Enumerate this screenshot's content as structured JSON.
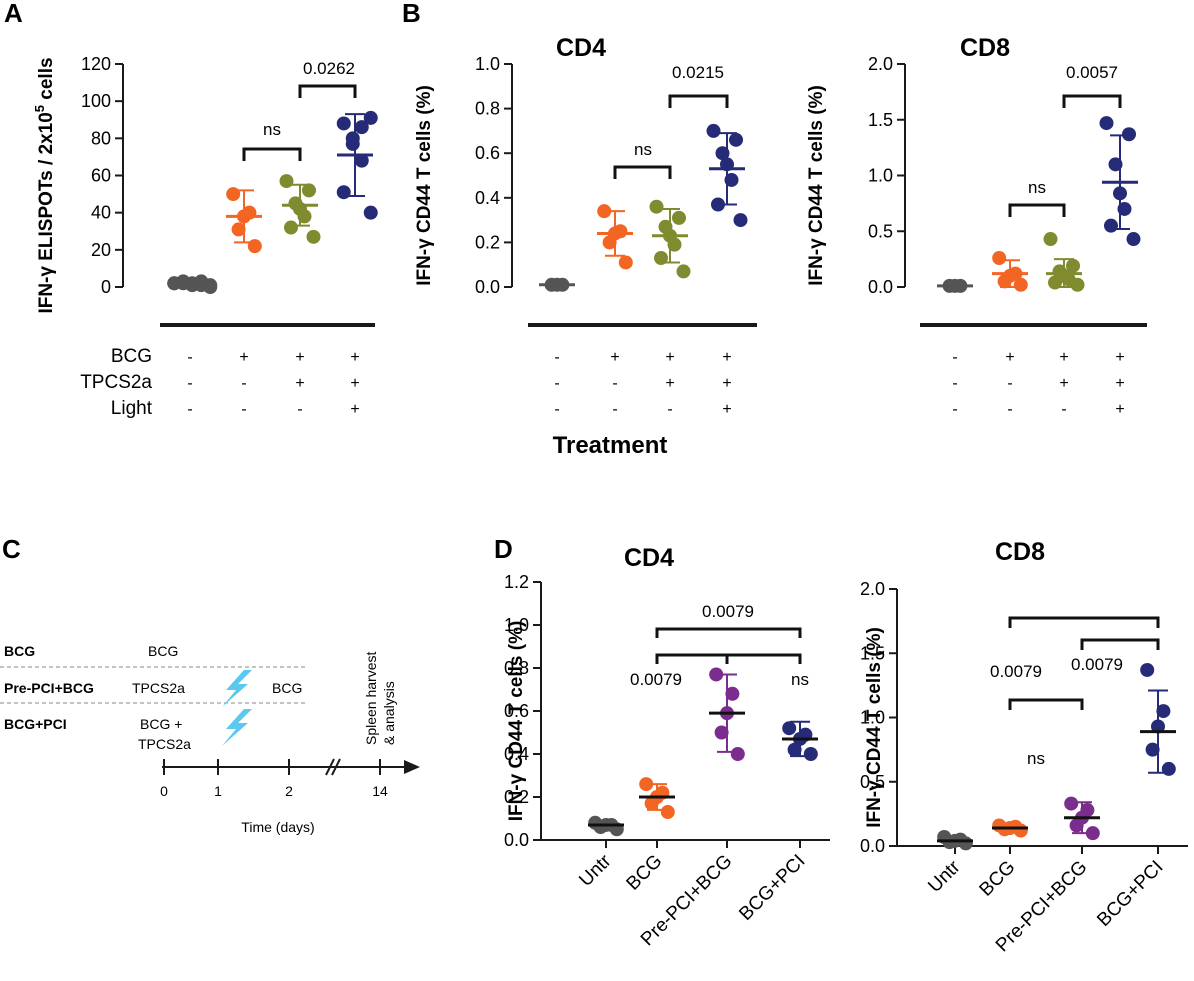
{
  "figure": {
    "panel_letters": [
      "A",
      "B",
      "C",
      "D"
    ],
    "treatment_label": "Treatment",
    "row_labels": [
      "BCG",
      "TPCS2a",
      "Light"
    ],
    "treatment_signs": [
      [
        "-",
        "+",
        "+",
        "+"
      ],
      [
        "-",
        "-",
        "+",
        "+"
      ],
      [
        "-",
        "-",
        "-",
        "+"
      ]
    ],
    "sup_text": "5",
    "colors": {
      "untr": "#555555",
      "bcg": "#F26522",
      "tpcs": "#7F8B2E",
      "bcgpci": "#262B77",
      "prepci": "#7B2D8E",
      "bolt": "#5BC8F0",
      "axis": "#1a1a1a"
    }
  },
  "schematic": {
    "rows": [
      {
        "label": "BCG",
        "steps": [
          {
            "day": "0",
            "text": "BCG"
          }
        ]
      },
      {
        "label": "Pre-PCI+BCG",
        "steps": [
          {
            "day": "0",
            "text": "TPCS2a"
          },
          {
            "day": "2",
            "text": "BCG"
          }
        ]
      },
      {
        "label": "BCG+PCI",
        "steps": [
          {
            "day": "0",
            "text": "BCG +"
          },
          {
            "day": "0",
            "text": "TPCS2a"
          }
        ]
      }
    ],
    "light_marker": "light-bolt",
    "timeline_ticks": [
      "0",
      "1",
      "2",
      "14"
    ],
    "timeline_label": "Time (days)",
    "endpoint_text_1": "Spleen harvest",
    "endpoint_text_2": "& analysis"
  },
  "chart_data": [
    {
      "id": "A",
      "type": "scatter",
      "title": "",
      "ylabel": "IFN-γ ELISPOTs / 2x10",
      "ylabel_suffix": " cells",
      "ylim": [
        0,
        120
      ],
      "yticks": [
        "0",
        "20",
        "40",
        "60",
        "80",
        "100",
        "120"
      ],
      "groups": [
        {
          "name": "-/-/-",
          "color": "#555555",
          "mean": 2,
          "sd": 0,
          "points": [
            1,
            2,
            3,
            2,
            1,
            2,
            3,
            1,
            2,
            0
          ]
        },
        {
          "name": "+/-/-",
          "color": "#F26522",
          "mean": 38,
          "sd": 14,
          "points": [
            22,
            31,
            38,
            40,
            50
          ]
        },
        {
          "name": "+/+/-",
          "color": "#7F8B2E",
          "mean": 44,
          "sd": 11,
          "points": [
            27,
            32,
            38,
            42,
            45,
            52,
            57
          ]
        },
        {
          "name": "+/+/+",
          "color": "#262B77",
          "mean": 71,
          "sd": 22,
          "points": [
            40,
            51,
            68,
            77,
            80,
            86,
            88,
            91
          ]
        }
      ],
      "brackets": [
        {
          "from": 1,
          "to": 2,
          "label": "ns"
        },
        {
          "from": 2,
          "to": 3,
          "label": "0.0262"
        }
      ]
    },
    {
      "id": "B1",
      "type": "scatter",
      "title": "CD4",
      "ylabel": "IFN-γ CD44 T cells (%)",
      "ylim": [
        0,
        1.0
      ],
      "yticks": [
        "0.0",
        "0.2",
        "0.4",
        "0.6",
        "0.8",
        "1.0"
      ],
      "groups": [
        {
          "name": "-/-/-",
          "color": "#555555",
          "mean": 0.01,
          "sd": 0,
          "points": [
            0.01,
            0.01,
            0.01
          ]
        },
        {
          "name": "+/-/-",
          "color": "#F26522",
          "mean": 0.24,
          "sd": 0.1,
          "points": [
            0.11,
            0.2,
            0.24,
            0.25,
            0.34
          ]
        },
        {
          "name": "+/+/-",
          "color": "#7F8B2E",
          "mean": 0.23,
          "sd": 0.12,
          "points": [
            0.07,
            0.13,
            0.19,
            0.23,
            0.27,
            0.31,
            0.36
          ]
        },
        {
          "name": "+/+/+",
          "color": "#262B77",
          "mean": 0.53,
          "sd": 0.16,
          "points": [
            0.3,
            0.37,
            0.48,
            0.55,
            0.6,
            0.66,
            0.7
          ]
        }
      ],
      "brackets": [
        {
          "from": 1,
          "to": 2,
          "label": "ns"
        },
        {
          "from": 2,
          "to": 3,
          "label": "0.0215"
        }
      ]
    },
    {
      "id": "B2",
      "type": "scatter",
      "title": "CD8",
      "ylabel": "IFN-γ CD44 T cells (%)",
      "ylim": [
        0,
        2.0
      ],
      "yticks": [
        "0.0",
        "0.5",
        "1.0",
        "1.5",
        "2.0"
      ],
      "groups": [
        {
          "name": "-/-/-",
          "color": "#555555",
          "mean": 0.01,
          "sd": 0,
          "points": [
            0.01,
            0.01,
            0.01
          ]
        },
        {
          "name": "+/-/-",
          "color": "#F26522",
          "mean": 0.12,
          "sd": 0.12,
          "points": [
            0.02,
            0.05,
            0.1,
            0.12,
            0.26
          ]
        },
        {
          "name": "+/+/-",
          "color": "#7F8B2E",
          "mean": 0.12,
          "sd": 0.13,
          "points": [
            0.02,
            0.04,
            0.07,
            0.1,
            0.14,
            0.19,
            0.43
          ]
        },
        {
          "name": "+/+/+",
          "color": "#262B77",
          "mean": 0.94,
          "sd": 0.42,
          "points": [
            0.43,
            0.55,
            0.7,
            0.84,
            1.1,
            1.37,
            1.47
          ]
        }
      ],
      "brackets": [
        {
          "from": 1,
          "to": 2,
          "label": "ns"
        },
        {
          "from": 2,
          "to": 3,
          "label": "0.0057"
        }
      ]
    },
    {
      "id": "D1",
      "type": "scatter",
      "title": "CD4",
      "ylabel": "IFN-γ CD44 T cells (%)",
      "ylim": [
        0,
        1.2
      ],
      "yticks": [
        "0.0",
        "0.2",
        "0.4",
        "0.6",
        "0.8",
        "1.0",
        "1.2"
      ],
      "categories": [
        "Untr",
        "BCG",
        "Pre-PCI+BCG",
        "BCG+PCI"
      ],
      "groups": [
        {
          "name": "Untr",
          "color": "#555555",
          "mean": 0.07,
          "sd": 0,
          "points": [
            0.05,
            0.06,
            0.07,
            0.07,
            0.08
          ]
        },
        {
          "name": "BCG",
          "color": "#F26522",
          "mean": 0.2,
          "sd": 0.06,
          "points": [
            0.13,
            0.17,
            0.2,
            0.22,
            0.26
          ]
        },
        {
          "name": "Pre-PCI+BCG",
          "color": "#7B2D8E",
          "mean": 0.59,
          "sd": 0.18,
          "points": [
            0.4,
            0.5,
            0.59,
            0.68,
            0.77
          ]
        },
        {
          "name": "BCG+PCI",
          "color": "#262B77",
          "mean": 0.47,
          "sd": 0.08,
          "points": [
            0.4,
            0.42,
            0.47,
            0.49,
            0.52
          ]
        }
      ],
      "brackets": [
        {
          "from": 1,
          "to": 3,
          "label": "0.0079"
        },
        {
          "from": 1,
          "to": 2,
          "label": "0.0079"
        },
        {
          "from": 2,
          "to": 3,
          "label": "ns"
        }
      ]
    },
    {
      "id": "D2",
      "type": "scatter",
      "title": "CD8",
      "ylabel": "IFN-γ CD44 T cells (%)",
      "ylim": [
        0,
        2.0
      ],
      "yticks": [
        "0.0",
        "0.5",
        "1.0",
        "1.5",
        "2.0"
      ],
      "categories": [
        "Untr",
        "BCG",
        "Pre-PCI+BCG",
        "BCG+PCI"
      ],
      "groups": [
        {
          "name": "Untr",
          "color": "#555555",
          "mean": 0.04,
          "sd": 0,
          "points": [
            0.02,
            0.03,
            0.04,
            0.05,
            0.07
          ]
        },
        {
          "name": "BCG",
          "color": "#F26522",
          "mean": 0.14,
          "sd": 0.02,
          "points": [
            0.12,
            0.13,
            0.14,
            0.15,
            0.16
          ]
        },
        {
          "name": "Pre-PCI+BCG",
          "color": "#7B2D8E",
          "mean": 0.22,
          "sd": 0.12,
          "points": [
            0.1,
            0.16,
            0.22,
            0.28,
            0.33
          ]
        },
        {
          "name": "BCG+PCI",
          "color": "#262B77",
          "mean": 0.89,
          "sd": 0.32,
          "points": [
            0.6,
            0.75,
            0.93,
            1.05,
            1.37
          ]
        }
      ],
      "brackets": [
        {
          "from": 1,
          "to": 3,
          "label": "0.0079"
        },
        {
          "from": 2,
          "to": 3,
          "label": "0.0079"
        },
        {
          "from": 1,
          "to": 2,
          "label": "ns"
        }
      ]
    }
  ]
}
